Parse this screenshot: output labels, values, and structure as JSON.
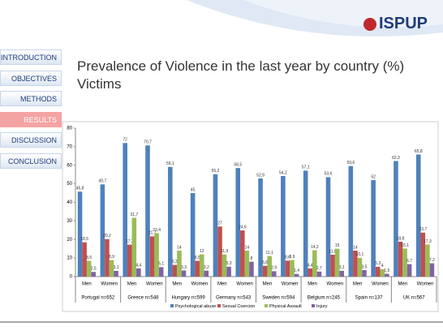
{
  "logo": "ISPUP",
  "nav": [
    "INTRODUCTION",
    "OBJECTIVES",
    "METHODS",
    "RESULTS",
    "DISCUSSION",
    "CONCLUSION"
  ],
  "chart_data": {
    "type": "bar",
    "title": "Prevalence of Violence in the last year by country (%)",
    "subtitle": "Victims",
    "categories": [
      "Men",
      "Women",
      "Men",
      "Women",
      "Men",
      "Women",
      "Men",
      "Women",
      "Men",
      "Women",
      "Men",
      "Women",
      "Men",
      "Women",
      "Men",
      "Women"
    ],
    "groups": [
      "Portugal n=652",
      "Greece n=548",
      "Hungary n=599",
      "Germany n=543",
      "Sweden n=594",
      "Belgium n=245",
      "Spain n=137",
      "UK n=567"
    ],
    "ylim": [
      0,
      80
    ],
    "yticks": [
      0,
      10,
      20,
      30,
      40,
      50,
      60,
      70,
      80
    ],
    "series": [
      {
        "name": "Psychological abuse",
        "color": "#4f81bd",
        "values": [
          45.8,
          49.7,
          72,
          70.7,
          59.1,
          45,
          55.2,
          58.5,
          52.9,
          54.2,
          57.1,
          53.6,
          59.6,
          52,
          62.3,
          65.8
        ],
        "value_labels": [
          "45,8",
          "49,7",
          "72",
          "70,7",
          "59,1",
          "45",
          "55,2",
          "58,5",
          "52,9",
          "54,2",
          "57,1",
          "53,6",
          "59,6",
          "52",
          "62,3",
          "65,8"
        ]
      },
      {
        "name": "Sexual Coercion",
        "color": "#c0504d",
        "values": [
          18.5,
          20.2,
          17.2,
          21.7,
          6.3,
          8.5,
          27,
          24.9,
          5.8,
          8.6,
          4.4,
          11.8,
          14,
          5.3,
          18.8,
          23.7
        ],
        "value_labels": [
          "18,5",
          "20,2",
          "17,2",
          "21,7",
          "6,3",
          "8,5",
          "27",
          "24,9",
          "5,8",
          "8,6",
          "4,4",
          "11,8",
          "14",
          "5,3",
          "18,8",
          "23,7"
        ]
      },
      {
        "name": "Physical Assault",
        "color": "#9bbb59",
        "values": [
          8.5,
          8.9,
          31.7,
          23.4,
          14,
          12,
          11.9,
          14,
          11.1,
          8.9,
          14.2,
          15,
          10.1,
          4,
          15.1,
          17.3
        ],
        "value_labels": [
          "8,5",
          "8,9",
          "31,7",
          "23,4",
          "14",
          "12",
          "11,9",
          "14",
          "11,1",
          "8,9",
          "14,2",
          "15",
          "10,1",
          "4",
          "15,1",
          "17,3"
        ]
      },
      {
        "name": "Injury",
        "color": "#8064a2",
        "values": [
          2.5,
          3.1,
          4.4,
          5.1,
          3.3,
          3.2,
          5.3,
          8,
          2.9,
          1.4,
          2.7,
          3.1,
          3.5,
          1.5,
          6.7,
          7.2
        ],
        "value_labels": [
          "2,5",
          "3,1",
          "4,4",
          "5,1",
          "3,3",
          "3,2",
          "5,3",
          "8",
          "2,9",
          "1,4",
          "2,7",
          "3,1",
          "3,5",
          "1,5",
          "6,7",
          "7,2"
        ]
      }
    ]
  }
}
